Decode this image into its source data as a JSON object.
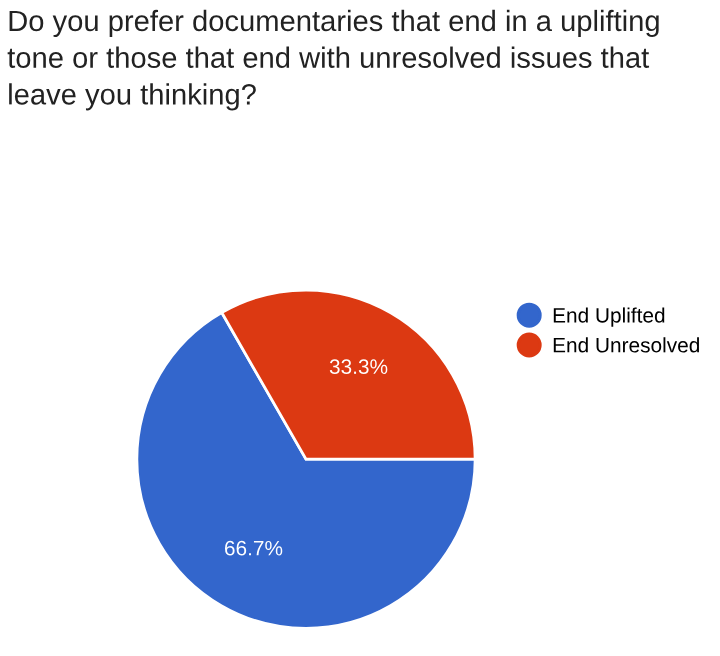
{
  "chart_data": {
    "type": "pie",
    "title": "Do you prefer documentaries that end in a uplifting tone or those that end with unresolved issues that leave you thinking?",
    "categories": [
      "End Uplifted",
      "End Unresolved"
    ],
    "values": [
      66.7,
      33.3
    ],
    "colors": [
      "#3366cc",
      "#dc3912"
    ],
    "value_labels": [
      "66.7%",
      "33.3%"
    ],
    "legend": "right"
  }
}
